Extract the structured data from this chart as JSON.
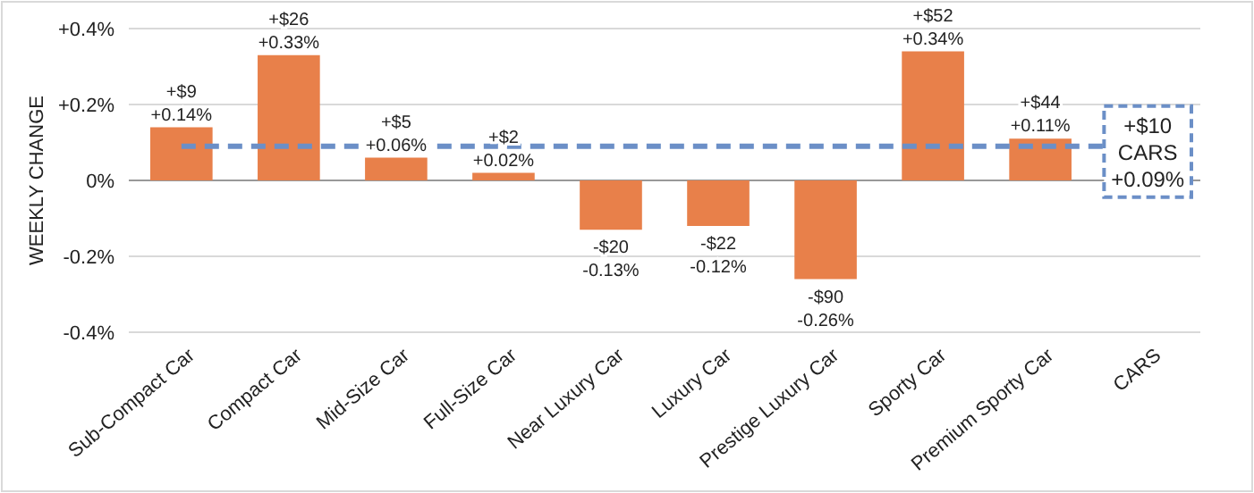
{
  "chart_data": {
    "type": "bar",
    "ylabel": "WEEKLY CHANGE",
    "categories": [
      "Sub-Compact Car",
      "Compact Car",
      "Mid-Size Car",
      "Full-Size Car",
      "Near Luxury Car",
      "Luxury Car",
      "Prestige Luxury Car",
      "Sporty Car",
      "Premium Sporty Car",
      "CARS"
    ],
    "values": [
      0.14,
      0.33,
      0.06,
      0.02,
      -0.13,
      -0.12,
      -0.26,
      0.34,
      0.11,
      null
    ],
    "value_labels": [
      "+$9\n+0.14%",
      "+$26\n+0.33%",
      "+$5\n+0.06%",
      "+$2\n+0.02%",
      "-$20\n-0.13%",
      "-$22\n-0.12%",
      "-$90\n-0.26%",
      "+$52\n+0.34%",
      "+$44\n+0.11%",
      null
    ],
    "color": "#e8804a",
    "ylim": [
      -0.4,
      0.4
    ],
    "yticks": [
      {
        "value": -0.4,
        "label": "-0.4%"
      },
      {
        "value": -0.2,
        "label": "-0.2%"
      },
      {
        "value": 0,
        "label": "0%"
      },
      {
        "value": 0.2,
        "label": "+0.2%"
      },
      {
        "value": 0.4,
        "label": "+0.4%"
      }
    ],
    "grid": "y",
    "ref_lines": [
      {
        "axis": "y",
        "value": 0.09,
        "label": "+$10\nCARS\n+0.09%",
        "color": "#6b8fc7",
        "line_style": "dashed"
      }
    ]
  }
}
